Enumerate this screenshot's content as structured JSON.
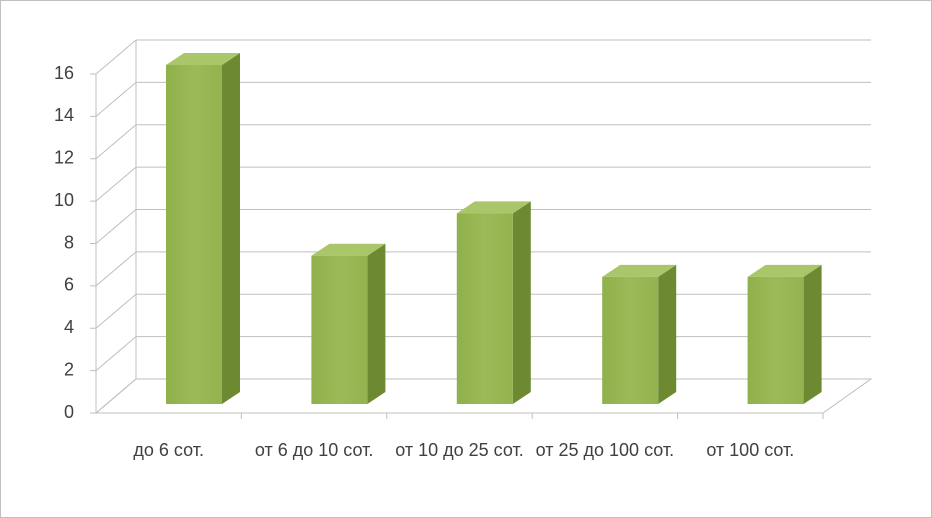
{
  "chart_data": {
    "type": "bar3d",
    "categories": [
      "до 6 сот.",
      "от 6 до 10 сот.",
      "от 10 до 25 сот.",
      "от 25 до 100 сот.",
      "от 100 сот."
    ],
    "values": [
      16,
      7,
      9,
      6,
      6
    ],
    "color": "#9bbb59",
    "ylim": [
      0,
      16
    ],
    "yticks": [
      0,
      2,
      4,
      6,
      8,
      10,
      12,
      14,
      16
    ],
    "grid": true
  }
}
